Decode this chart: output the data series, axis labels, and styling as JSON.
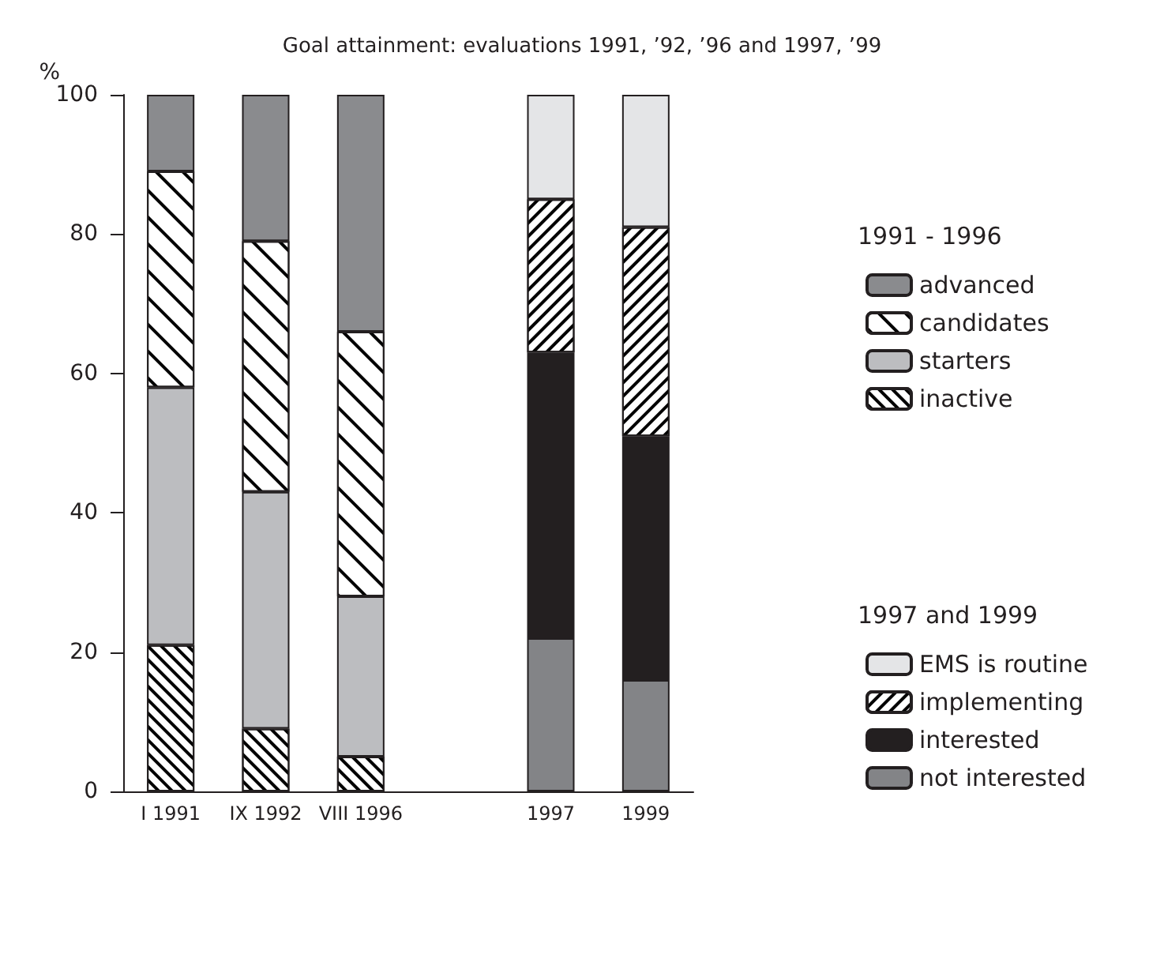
{
  "chart_data": {
    "type": "bar",
    "title": "Goal attainment: evaluations 1991, ’92, ’96 and 1997, ’99",
    "ylabel": "%",
    "categories": [
      "I 1991",
      "IX 1992",
      "VIII 1996",
      null,
      "1997",
      "1999"
    ],
    "stacked": true,
    "ylim": [
      0,
      100
    ],
    "yticks": [
      0,
      20,
      40,
      60,
      80,
      100
    ],
    "grid": false,
    "legend": "right",
    "annotations": [
      "1991 - 1996",
      "1997 and 1999"
    ],
    "series": [
      {
        "name": "inactive",
        "color": "#ffffff",
        "values": [
          21,
          9,
          5,
          null,
          null,
          null
        ]
      },
      {
        "name": "starters",
        "color": "#bcbdc0",
        "values": [
          37,
          34,
          23,
          null,
          null,
          null
        ]
      },
      {
        "name": "candidates",
        "color": "#ffffff",
        "values": [
          31,
          36,
          38,
          null,
          null,
          null
        ]
      },
      {
        "name": "advanced",
        "color": "#8a8b8e",
        "values": [
          11,
          21,
          34,
          null,
          null,
          null
        ]
      },
      {
        "name": "not interested",
        "color": "#838487",
        "values": [
          null,
          null,
          null,
          null,
          22,
          16
        ]
      },
      {
        "name": "interested",
        "color": "#231f20",
        "values": [
          null,
          null,
          null,
          null,
          41,
          35
        ]
      },
      {
        "name": "implementing",
        "color": "#ffffff",
        "values": [
          null,
          null,
          null,
          null,
          22,
          30
        ]
      },
      {
        "name": "EMS is routine",
        "color": "#e4e5e7",
        "values": [
          null,
          null,
          null,
          null,
          15,
          19
        ]
      }
    ]
  }
}
